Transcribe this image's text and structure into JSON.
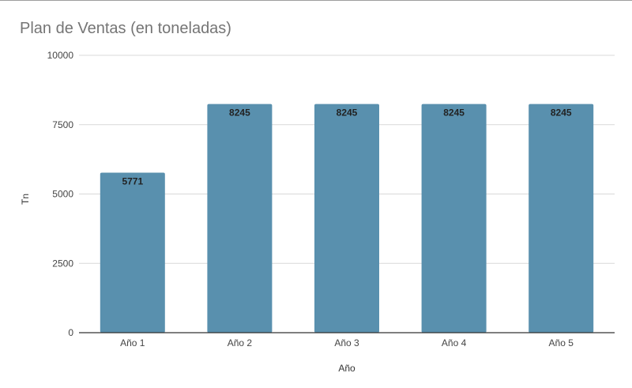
{
  "chart_data": {
    "type": "bar",
    "title": "Plan de Ventas (en toneladas)",
    "xlabel": "Año",
    "ylabel": "Tn",
    "categories": [
      "Año 1",
      "Año 2",
      "Año 3",
      "Año 4",
      "Año 5"
    ],
    "values": [
      5771,
      8245,
      8245,
      8245,
      8245
    ],
    "data_labels": [
      "5771",
      "8245",
      "8245",
      "8245",
      "8245"
    ],
    "ylim": [
      0,
      10000
    ],
    "yticks": [
      "0",
      "2500",
      "5000",
      "7500",
      "10000"
    ],
    "grid": true,
    "legend": "none",
    "bar_color": "#5990ae"
  }
}
